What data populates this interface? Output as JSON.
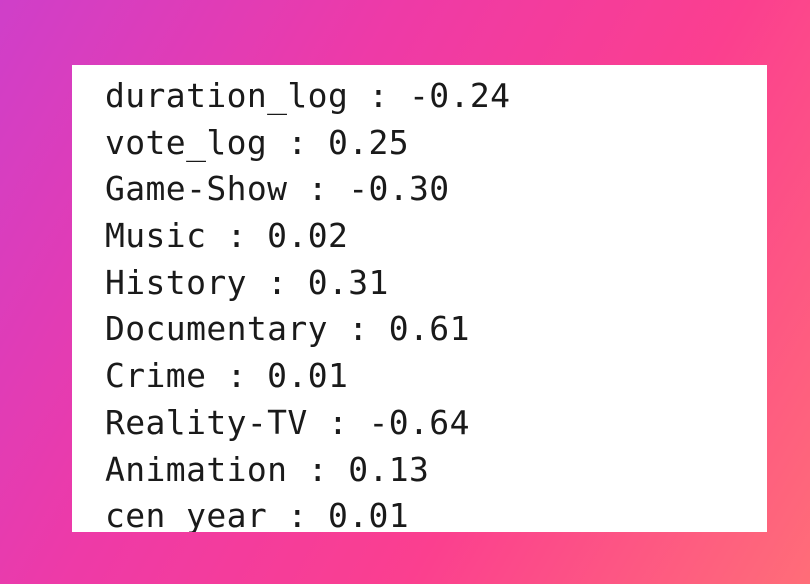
{
  "coefficients": [
    {
      "name": "duration_log",
      "value": "-0.24"
    },
    {
      "name": "vote_log",
      "value": "0.25"
    },
    {
      "name": "Game-Show",
      "value": "-0.30"
    },
    {
      "name": "Music",
      "value": "0.02"
    },
    {
      "name": "History",
      "value": "0.31"
    },
    {
      "name": "Documentary",
      "value": "0.61"
    },
    {
      "name": "Crime",
      "value": "0.01"
    },
    {
      "name": "Reality-TV",
      "value": "-0.64"
    },
    {
      "name": "Animation",
      "value": "0.13"
    },
    {
      "name": "cen_year",
      "value": "0.01"
    }
  ],
  "separator": " : ",
  "colors": {
    "text": "#1a1a1a",
    "card": "#ffffff"
  }
}
